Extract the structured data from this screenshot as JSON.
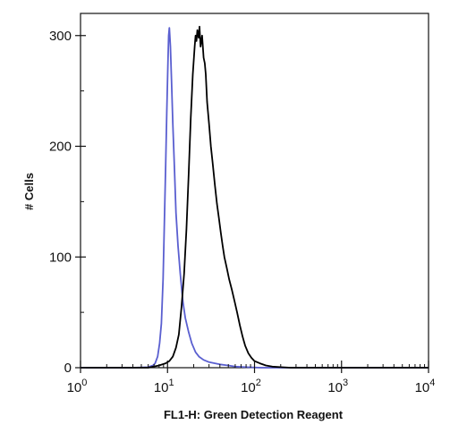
{
  "chart_data": {
    "type": "line",
    "title": "",
    "xlabel": "FL1-H: Green Detection Reagent",
    "ylabel": "# Cells",
    "xscale": "log",
    "xlim": [
      1,
      10000
    ],
    "ylim": [
      0,
      320
    ],
    "grid": false,
    "legend": "none",
    "x_ticks": [
      {
        "value": 1,
        "base": "10",
        "exp": "0"
      },
      {
        "value": 10,
        "base": "10",
        "exp": "1"
      },
      {
        "value": 100,
        "base": "10",
        "exp": "2"
      },
      {
        "value": 1000,
        "base": "10",
        "exp": "3"
      },
      {
        "value": 10000,
        "base": "10",
        "exp": "4"
      }
    ],
    "y_ticks": [
      {
        "value": 0,
        "label": "0"
      },
      {
        "value": 100,
        "label": "100"
      },
      {
        "value": 200,
        "label": "200"
      },
      {
        "value": 300,
        "label": "300"
      }
    ],
    "series": [
      {
        "color": "#5a5fd0",
        "points": [
          [
            1,
            0
          ],
          [
            4,
            0
          ],
          [
            6,
            0.5
          ],
          [
            6.8,
            2
          ],
          [
            7.2,
            4
          ],
          [
            7.7,
            10
          ],
          [
            8.1,
            22
          ],
          [
            8.5,
            40
          ],
          [
            8.9,
            80
          ],
          [
            9.2,
            130
          ],
          [
            9.5,
            180
          ],
          [
            9.8,
            230
          ],
          [
            10.1,
            275
          ],
          [
            10.3,
            300
          ],
          [
            10.5,
            307
          ],
          [
            10.8,
            290
          ],
          [
            11.1,
            260
          ],
          [
            11.5,
            220
          ],
          [
            12,
            180
          ],
          [
            12.5,
            140
          ],
          [
            13.2,
            110
          ],
          [
            14,
            85
          ],
          [
            15,
            60
          ],
          [
            16,
            45
          ],
          [
            17.5,
            32
          ],
          [
            19,
            22
          ],
          [
            21,
            14
          ],
          [
            23,
            10
          ],
          [
            26,
            7
          ],
          [
            30,
            5
          ],
          [
            35,
            4
          ],
          [
            40,
            3
          ],
          [
            50,
            2
          ],
          [
            60,
            1
          ],
          [
            80,
            0.5
          ],
          [
            120,
            0
          ],
          [
            10000,
            0
          ]
        ]
      },
      {
        "color": "#000000",
        "points": [
          [
            1,
            0
          ],
          [
            6,
            0
          ],
          [
            8,
            2
          ],
          [
            9.5,
            4
          ],
          [
            10.5,
            6
          ],
          [
            11.5,
            10
          ],
          [
            12.5,
            18
          ],
          [
            13.5,
            30
          ],
          [
            14.5,
            55
          ],
          [
            15.5,
            85
          ],
          [
            16.5,
            125
          ],
          [
            17.5,
            175
          ],
          [
            18.5,
            225
          ],
          [
            19.5,
            265
          ],
          [
            20.5,
            290
          ],
          [
            21,
            300
          ],
          [
            21.5,
            295
          ],
          [
            22,
            305
          ],
          [
            22.8,
            298
          ],
          [
            23.3,
            308
          ],
          [
            24,
            290
          ],
          [
            25,
            300
          ],
          [
            26,
            280
          ],
          [
            26.8,
            275
          ],
          [
            27.5,
            265
          ],
          [
            28.5,
            240
          ],
          [
            30,
            220
          ],
          [
            31.5,
            200
          ],
          [
            33,
            185
          ],
          [
            35,
            165
          ],
          [
            37,
            148
          ],
          [
            39,
            135
          ],
          [
            41,
            122
          ],
          [
            43,
            110
          ],
          [
            45,
            100
          ],
          [
            48,
            90
          ],
          [
            51,
            80
          ],
          [
            55,
            70
          ],
          [
            59,
            60
          ],
          [
            63,
            50
          ],
          [
            68,
            38
          ],
          [
            73,
            28
          ],
          [
            78,
            20
          ],
          [
            85,
            13
          ],
          [
            92,
            9
          ],
          [
            100,
            6
          ],
          [
            115,
            4
          ],
          [
            135,
            2
          ],
          [
            160,
            1
          ],
          [
            200,
            0.5
          ],
          [
            260,
            0
          ],
          [
            10000,
            0
          ]
        ]
      }
    ]
  }
}
